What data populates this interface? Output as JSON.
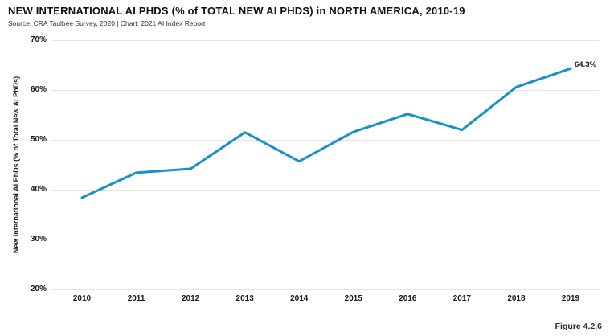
{
  "page": {
    "title": "NEW INTERNATIONAL AI PHDS (% of TOTAL NEW AI PHDS) in NORTH AMERICA, 2010-19",
    "source_line": "Source: CRA Taulbee Survey, 2020 | Chart: 2021 AI Index Report",
    "figure_label": "Figure 4.2.6"
  },
  "colors": {
    "line": "#1791c9",
    "grid": "#e3e3e3",
    "title_text": "#111111",
    "label_text": "#1a1a1a"
  },
  "chart_data": {
    "type": "line",
    "title": "NEW INTERNATIONAL AI PHDS (% of TOTAL NEW AI PHDS) in NORTH AMERICA, 2010-19",
    "subtitle": "Source: CRA Taulbee Survey, 2020 | Chart: 2021 AI Index Report",
    "categories": [
      "2010",
      "2011",
      "2012",
      "2013",
      "2014",
      "2015",
      "2016",
      "2017",
      "2018",
      "2019"
    ],
    "series": [
      {
        "name": "New International AI PhDs (% of Total New AI PhDs)",
        "values": [
          38.4,
          43.4,
          44.2,
          51.5,
          45.7,
          51.6,
          55.2,
          52.0,
          60.6,
          64.3
        ]
      }
    ],
    "xlabel": "",
    "ylabel": "New International AI PhDs (% of Total New AI PhDs)",
    "ylim": [
      20,
      70
    ],
    "yticks": [
      "70%",
      "60%",
      "50%",
      "40%",
      "30%",
      "20%"
    ],
    "ytick_values": [
      70,
      60,
      50,
      40,
      30,
      20
    ],
    "grid": "horizontal-only",
    "legend": "none",
    "end_label": "64.3%",
    "figure_label": "Figure 4.2.6"
  }
}
